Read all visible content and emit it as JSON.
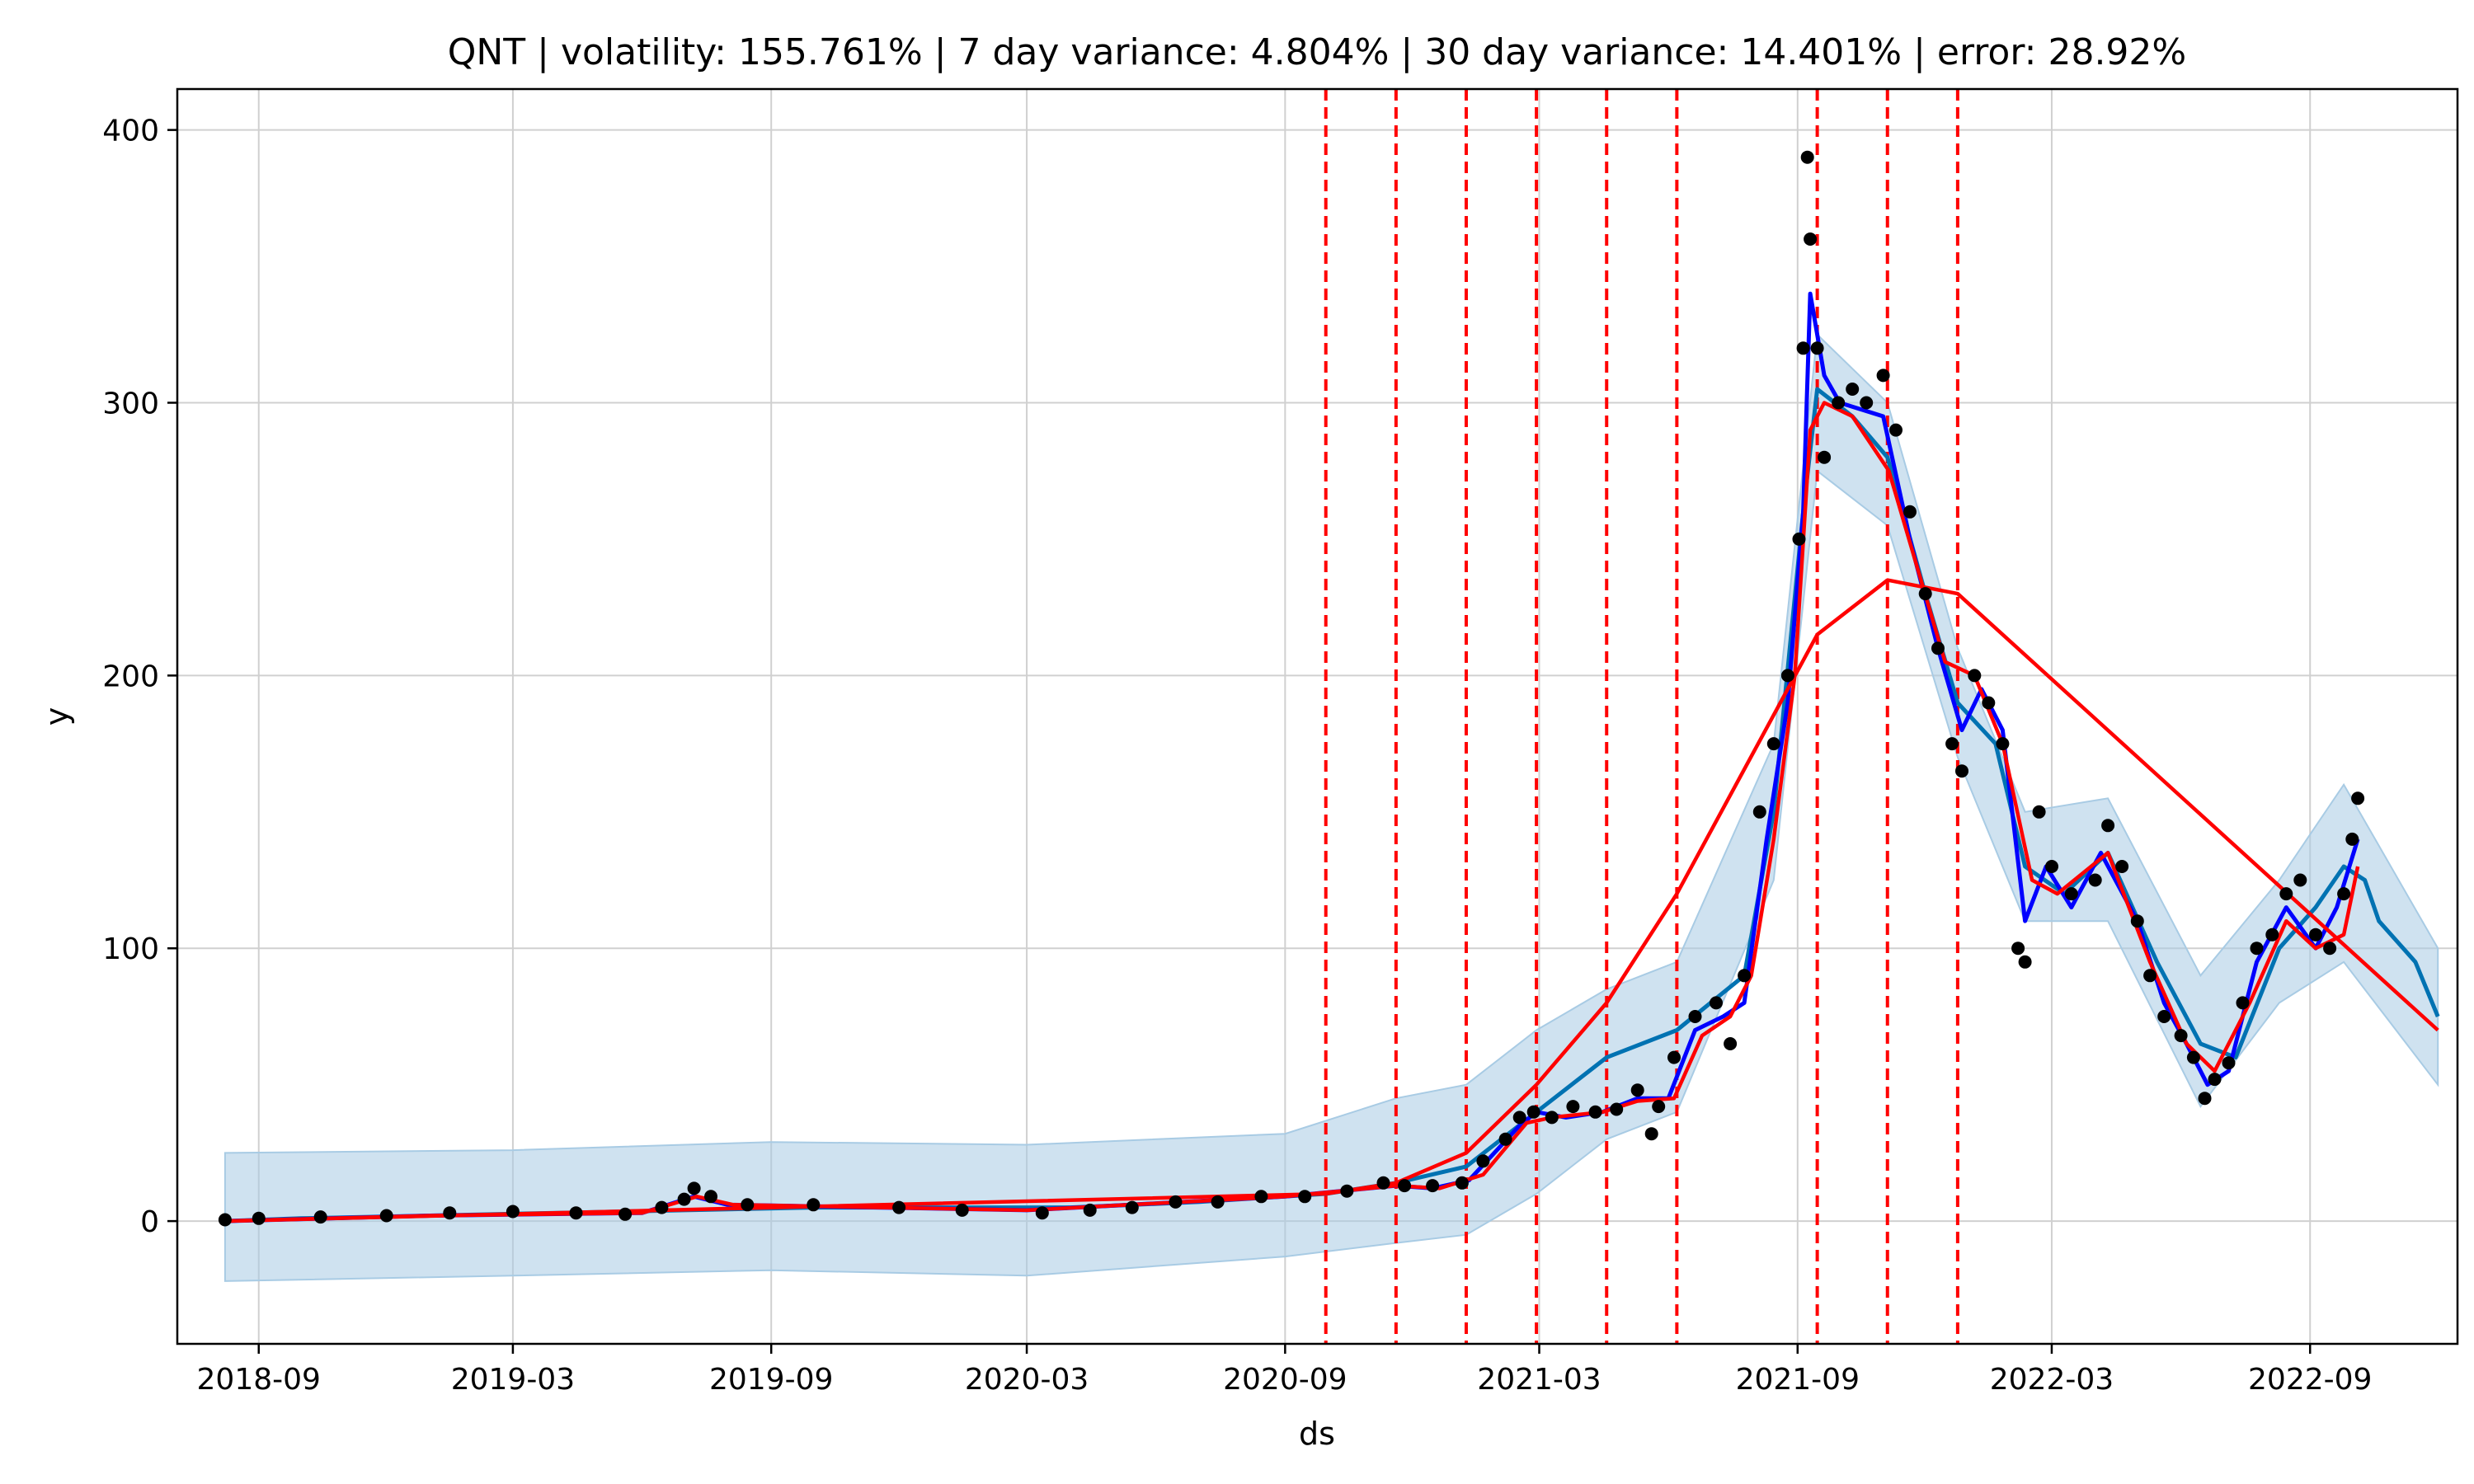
{
  "chart_data": {
    "type": "line",
    "title": "QNT | volatility: 155.761% | 7 day variance: 4.804% | 30 day variance: 14.401% | error: 28.92%",
    "xlabel": "ds",
    "ylabel": "y",
    "x_range": [
      "2018-07-05",
      "2022-12-15"
    ],
    "ylim": [
      -45,
      415
    ],
    "y_ticks": [
      0,
      100,
      200,
      300,
      400
    ],
    "x_ticks": [
      "2018-09",
      "2019-03",
      "2019-09",
      "2020-03",
      "2020-09",
      "2021-03",
      "2021-09",
      "2022-03",
      "2022-09"
    ],
    "grid": true,
    "changepoints": [
      "2020-09-30",
      "2020-11-19",
      "2021-01-08",
      "2021-02-27",
      "2021-04-18",
      "2021-06-07",
      "2021-09-15",
      "2021-11-04",
      "2021-12-24"
    ],
    "colors": {
      "observed": "#000000",
      "forecast": "#0072B2",
      "interval": "#a8cbe4",
      "moving_average": "#0000ff",
      "smoothed": "#ff0000",
      "trend": "#ff0000",
      "changepoint": "#ff0000",
      "grid": "#d0d0d0"
    },
    "series": [
      {
        "role": "observed",
        "points": [
          [
            "2018-08-08",
            0.5
          ],
          [
            "2018-09-01",
            1
          ],
          [
            "2018-10-15",
            1.5
          ],
          [
            "2018-12-01",
            2
          ],
          [
            "2019-01-15",
            3
          ],
          [
            "2019-03-01",
            3.5
          ],
          [
            "2019-04-15",
            3
          ],
          [
            "2019-05-20",
            2.5
          ],
          [
            "2019-06-15",
            5
          ],
          [
            "2019-07-01",
            8
          ],
          [
            "2019-07-08",
            12
          ],
          [
            "2019-07-20",
            9
          ],
          [
            "2019-08-15",
            6
          ],
          [
            "2019-10-01",
            6
          ],
          [
            "2019-12-01",
            5
          ],
          [
            "2020-01-15",
            4
          ],
          [
            "2020-03-12",
            3
          ],
          [
            "2020-04-15",
            4
          ],
          [
            "2020-05-15",
            5
          ],
          [
            "2020-06-15",
            7
          ],
          [
            "2020-07-15",
            7
          ],
          [
            "2020-08-15",
            9
          ],
          [
            "2020-09-15",
            9
          ],
          [
            "2020-10-15",
            11
          ],
          [
            "2020-11-10",
            14
          ],
          [
            "2020-11-25",
            13
          ],
          [
            "2020-12-15",
            13
          ],
          [
            "2021-01-05",
            14
          ],
          [
            "2021-01-20",
            22
          ],
          [
            "2021-02-05",
            30
          ],
          [
            "2021-02-15",
            38
          ],
          [
            "2021-02-25",
            40
          ],
          [
            "2021-03-10",
            38
          ],
          [
            "2021-03-25",
            42
          ],
          [
            "2021-04-10",
            40
          ],
          [
            "2021-04-25",
            41
          ],
          [
            "2021-05-10",
            48
          ],
          [
            "2021-05-20",
            32
          ],
          [
            "2021-05-25",
            42
          ],
          [
            "2021-06-05",
            60
          ],
          [
            "2021-06-20",
            75
          ],
          [
            "2021-07-05",
            80
          ],
          [
            "2021-07-15",
            65
          ],
          [
            "2021-07-25",
            90
          ],
          [
            "2021-08-05",
            150
          ],
          [
            "2021-08-15",
            175
          ],
          [
            "2021-08-25",
            200
          ],
          [
            "2021-09-02",
            250
          ],
          [
            "2021-09-05",
            320
          ],
          [
            "2021-09-08",
            390
          ],
          [
            "2021-09-10",
            360
          ],
          [
            "2021-09-15",
            320
          ],
          [
            "2021-09-20",
            280
          ],
          [
            "2021-09-30",
            300
          ],
          [
            "2021-10-10",
            305
          ],
          [
            "2021-10-20",
            300
          ],
          [
            "2021-11-01",
            310
          ],
          [
            "2021-11-10",
            290
          ],
          [
            "2021-11-20",
            260
          ],
          [
            "2021-12-01",
            230
          ],
          [
            "2021-12-10",
            210
          ],
          [
            "2021-12-20",
            175
          ],
          [
            "2021-12-27",
            165
          ],
          [
            "2022-01-05",
            200
          ],
          [
            "2022-01-15",
            190
          ],
          [
            "2022-01-25",
            175
          ],
          [
            "2022-02-05",
            100
          ],
          [
            "2022-02-10",
            95
          ],
          [
            "2022-02-20",
            150
          ],
          [
            "2022-03-01",
            130
          ],
          [
            "2022-03-15",
            120
          ],
          [
            "2022-04-01",
            125
          ],
          [
            "2022-04-10",
            145
          ],
          [
            "2022-04-20",
            130
          ],
          [
            "2022-05-01",
            110
          ],
          [
            "2022-05-10",
            90
          ],
          [
            "2022-05-20",
            75
          ],
          [
            "2022-06-01",
            68
          ],
          [
            "2022-06-10",
            60
          ],
          [
            "2022-06-18",
            45
          ],
          [
            "2022-06-25",
            52
          ],
          [
            "2022-07-05",
            58
          ],
          [
            "2022-07-15",
            80
          ],
          [
            "2022-07-25",
            100
          ],
          [
            "2022-08-05",
            105
          ],
          [
            "2022-08-15",
            120
          ],
          [
            "2022-08-25",
            125
          ],
          [
            "2022-09-05",
            105
          ],
          [
            "2022-09-15",
            100
          ],
          [
            "2022-09-25",
            120
          ],
          [
            "2022-10-01",
            140
          ],
          [
            "2022-10-05",
            155
          ]
        ]
      },
      {
        "role": "forecast",
        "points": [
          [
            "2018-08-08",
            0
          ],
          [
            "2018-10-01",
            1
          ],
          [
            "2019-01-01",
            2
          ],
          [
            "2019-04-01",
            3
          ],
          [
            "2019-07-01",
            4
          ],
          [
            "2019-10-01",
            5
          ],
          [
            "2020-01-01",
            5
          ],
          [
            "2020-04-01",
            5
          ],
          [
            "2020-07-01",
            7
          ],
          [
            "2020-09-30",
            10
          ],
          [
            "2020-11-19",
            14
          ],
          [
            "2021-01-08",
            20
          ],
          [
            "2021-02-27",
            40
          ],
          [
            "2021-04-18",
            60
          ],
          [
            "2021-06-07",
            70
          ],
          [
            "2021-07-25",
            90
          ],
          [
            "2021-08-15",
            150
          ],
          [
            "2021-09-05",
            260
          ],
          [
            "2021-09-15",
            305
          ],
          [
            "2021-10-10",
            295
          ],
          [
            "2021-11-04",
            280
          ],
          [
            "2021-12-01",
            230
          ],
          [
            "2021-12-24",
            190
          ],
          [
            "2022-01-20",
            175
          ],
          [
            "2022-02-10",
            130
          ],
          [
            "2022-03-10",
            120
          ],
          [
            "2022-04-10",
            135
          ],
          [
            "2022-05-15",
            95
          ],
          [
            "2022-06-15",
            65
          ],
          [
            "2022-07-10",
            60
          ],
          [
            "2022-08-10",
            100
          ],
          [
            "2022-09-05",
            115
          ],
          [
            "2022-09-25",
            130
          ],
          [
            "2022-10-10",
            125
          ],
          [
            "2022-10-20",
            110
          ],
          [
            "2022-11-15",
            95
          ],
          [
            "2022-12-01",
            75
          ]
        ]
      },
      {
        "role": "interval",
        "upper": [
          [
            "2018-08-08",
            25
          ],
          [
            "2019-03-01",
            26
          ],
          [
            "2019-09-01",
            29
          ],
          [
            "2020-03-01",
            28
          ],
          [
            "2020-09-01",
            32
          ],
          [
            "2020-11-19",
            45
          ],
          [
            "2021-01-08",
            50
          ],
          [
            "2021-02-27",
            70
          ],
          [
            "2021-04-18",
            85
          ],
          [
            "2021-06-07",
            95
          ],
          [
            "2021-08-15",
            175
          ],
          [
            "2021-09-15",
            325
          ],
          [
            "2021-11-04",
            300
          ],
          [
            "2021-12-24",
            210
          ],
          [
            "2022-02-10",
            150
          ],
          [
            "2022-04-10",
            155
          ],
          [
            "2022-06-15",
            90
          ],
          [
            "2022-08-10",
            125
          ],
          [
            "2022-09-25",
            160
          ],
          [
            "2022-12-01",
            100
          ]
        ],
        "lower": [
          [
            "2018-08-08",
            -22
          ],
          [
            "2019-03-01",
            -20
          ],
          [
            "2019-09-01",
            -18
          ],
          [
            "2020-03-01",
            -20
          ],
          [
            "2020-09-01",
            -13
          ],
          [
            "2020-11-19",
            -8
          ],
          [
            "2021-01-08",
            -5
          ],
          [
            "2021-02-27",
            10
          ],
          [
            "2021-04-18",
            30
          ],
          [
            "2021-06-07",
            40
          ],
          [
            "2021-08-15",
            125
          ],
          [
            "2021-09-15",
            275
          ],
          [
            "2021-11-04",
            255
          ],
          [
            "2021-12-24",
            170
          ],
          [
            "2022-02-10",
            110
          ],
          [
            "2022-04-10",
            110
          ],
          [
            "2022-06-15",
            42
          ],
          [
            "2022-08-10",
            80
          ],
          [
            "2022-09-25",
            95
          ],
          [
            "2022-12-01",
            50
          ]
        ]
      },
      {
        "role": "moving_average",
        "points": [
          [
            "2018-08-08",
            0
          ],
          [
            "2019-01-01",
            2
          ],
          [
            "2019-06-01",
            3
          ],
          [
            "2019-07-08",
            9
          ],
          [
            "2019-08-01",
            6
          ],
          [
            "2020-03-01",
            4
          ],
          [
            "2020-09-01",
            9
          ],
          [
            "2020-11-19",
            13
          ],
          [
            "2020-12-15",
            12
          ],
          [
            "2021-01-10",
            15
          ],
          [
            "2021-02-15",
            35
          ],
          [
            "2021-02-27",
            40
          ],
          [
            "2021-03-20",
            38
          ],
          [
            "2021-04-15",
            40
          ],
          [
            "2021-05-10",
            45
          ],
          [
            "2021-06-01",
            45
          ],
          [
            "2021-06-20",
            70
          ],
          [
            "2021-07-10",
            75
          ],
          [
            "2021-07-25",
            80
          ],
          [
            "2021-08-10",
            140
          ],
          [
            "2021-08-25",
            190
          ],
          [
            "2021-09-05",
            260
          ],
          [
            "2021-09-10",
            340
          ],
          [
            "2021-09-20",
            310
          ],
          [
            "2021-10-01",
            300
          ],
          [
            "2021-11-01",
            295
          ],
          [
            "2021-11-20",
            250
          ],
          [
            "2021-12-10",
            210
          ],
          [
            "2021-12-27",
            180
          ],
          [
            "2022-01-10",
            195
          ],
          [
            "2022-01-25",
            180
          ],
          [
            "2022-02-10",
            110
          ],
          [
            "2022-02-25",
            130
          ],
          [
            "2022-03-15",
            115
          ],
          [
            "2022-04-05",
            135
          ],
          [
            "2022-05-01",
            110
          ],
          [
            "2022-05-20",
            80
          ],
          [
            "2022-06-05",
            65
          ],
          [
            "2022-06-20",
            50
          ],
          [
            "2022-07-05",
            55
          ],
          [
            "2022-07-25",
            95
          ],
          [
            "2022-08-15",
            115
          ],
          [
            "2022-09-05",
            100
          ],
          [
            "2022-09-20",
            115
          ],
          [
            "2022-10-05",
            140
          ]
        ]
      },
      {
        "role": "smoothed",
        "points": [
          [
            "2018-08-08",
            0
          ],
          [
            "2019-01-01",
            2
          ],
          [
            "2019-06-01",
            3
          ],
          [
            "2019-07-10",
            9
          ],
          [
            "2019-08-05",
            6
          ],
          [
            "2020-03-01",
            4
          ],
          [
            "2020-09-01",
            9
          ],
          [
            "2020-11-19",
            13
          ],
          [
            "2020-12-20",
            12
          ],
          [
            "2021-01-20",
            17
          ],
          [
            "2021-02-20",
            36
          ],
          [
            "2021-03-10",
            38
          ],
          [
            "2021-04-15",
            40
          ],
          [
            "2021-05-10",
            44
          ],
          [
            "2021-06-05",
            45
          ],
          [
            "2021-06-25",
            68
          ],
          [
            "2021-07-15",
            75
          ],
          [
            "2021-07-30",
            90
          ],
          [
            "2021-08-15",
            140
          ],
          [
            "2021-08-30",
            200
          ],
          [
            "2021-09-10",
            290
          ],
          [
            "2021-09-20",
            300
          ],
          [
            "2021-10-10",
            295
          ],
          [
            "2021-11-05",
            275
          ],
          [
            "2021-11-25",
            240
          ],
          [
            "2021-12-15",
            205
          ],
          [
            "2022-01-05",
            200
          ],
          [
            "2022-01-25",
            175
          ],
          [
            "2022-02-15",
            125
          ],
          [
            "2022-03-05",
            120
          ],
          [
            "2022-04-10",
            135
          ],
          [
            "2022-05-10",
            95
          ],
          [
            "2022-06-05",
            65
          ],
          [
            "2022-06-25",
            55
          ],
          [
            "2022-07-20",
            80
          ],
          [
            "2022-08-15",
            110
          ],
          [
            "2022-09-05",
            100
          ],
          [
            "2022-09-25",
            105
          ],
          [
            "2022-10-05",
            130
          ]
        ]
      },
      {
        "role": "trend",
        "points": [
          [
            "2018-08-08",
            0
          ],
          [
            "2020-09-30",
            10
          ],
          [
            "2020-11-19",
            14
          ],
          [
            "2021-01-08",
            25
          ],
          [
            "2021-02-27",
            50
          ],
          [
            "2021-04-18",
            80
          ],
          [
            "2021-06-07",
            120
          ],
          [
            "2021-09-15",
            215
          ],
          [
            "2021-11-04",
            235
          ],
          [
            "2021-12-24",
            230
          ],
          [
            "2022-12-01",
            70
          ]
        ]
      }
    ]
  }
}
